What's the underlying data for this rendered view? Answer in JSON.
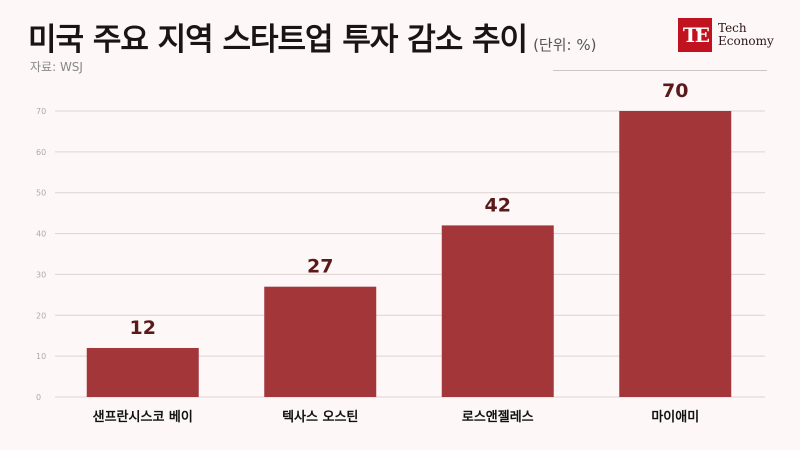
{
  "header": {
    "title": "미국 주요 지역 스타트업 투자 감소 추이",
    "unit": "(단위: %)",
    "source": "자료: WSJ"
  },
  "logo": {
    "mark": "TE",
    "line1": "Tech",
    "line2": "Economy"
  },
  "colors": {
    "bar": "#a33639",
    "brand": "#c1121f"
  },
  "chart_data": {
    "type": "bar",
    "title": "미국 주요 지역 스타트업 투자 감소 추이",
    "xlabel": "",
    "ylabel": "",
    "categories": [
      "샌프란시스코 베이",
      "텍사스 오스틴",
      "로스앤젤레스",
      "마이애미"
    ],
    "values": [
      12,
      27,
      42,
      70
    ],
    "ylim": [
      0,
      70
    ],
    "yticks": [
      0,
      10,
      20,
      30,
      40,
      50,
      60,
      70
    ],
    "grid": true,
    "legend": "none"
  }
}
